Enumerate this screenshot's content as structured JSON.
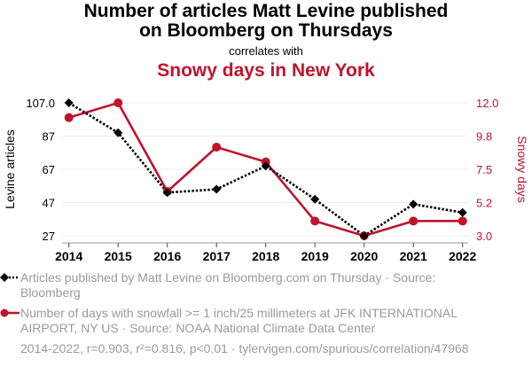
{
  "header": {
    "title_line1": "Number of articles Matt Levine published",
    "title_line2": "on Bloomberg on Thursdays",
    "subtitle": "correlates with",
    "title2": "Snowy days in New York"
  },
  "colors": {
    "series1": "#000000",
    "series2": "#C0132D",
    "grid": "#eeeeee",
    "axis": "#999999",
    "legend_text": "#9a9a9a"
  },
  "legend": [
    {
      "label": "Articles published by Matt Levine on Bloomberg.com on Thursday · Source: Bloomberg"
    },
    {
      "label": "Number of days with snowfall >= 1 inch/25 millimeters at JFK INTERNATIONAL AIRPORT, NY US · Source: NOAA National Climate Data Center"
    }
  ],
  "footer": "2014-2022, r=0.903, r²=0.816, p<0.01 · tylervigen.com/spurious/correlation/47968",
  "chart_data": {
    "type": "line",
    "title": "Number of articles Matt Levine published on Bloomberg on Thursdays correlates with Snowy days in New York",
    "x": [
      2014,
      2015,
      2016,
      2017,
      2018,
      2019,
      2020,
      2021,
      2022
    ],
    "xtick_labels": [
      "2014",
      "2015",
      "2016",
      "2017",
      "2018",
      "2019",
      "2020",
      "2021",
      "2022"
    ],
    "series": [
      {
        "name": "Articles published by Matt Levine on Bloomberg.com on Thursday",
        "axis": "left",
        "style": "dotted",
        "marker": "diamond",
        "values": [
          107,
          89,
          53,
          55,
          69,
          49,
          27,
          46,
          41
        ]
      },
      {
        "name": "Number of days with snowfall >= 1 inch/25 millimeters at JFK INTERNATIONAL AIRPORT, NY US",
        "axis": "right",
        "style": "solid",
        "marker": "circle",
        "values": [
          11,
          12,
          6,
          9,
          8,
          4,
          3,
          4,
          4
        ]
      }
    ],
    "ylabel_left": "Levine articles",
    "ylabel_right": "Snowy days",
    "ylim_left": [
      27,
      107
    ],
    "ylim_right": [
      3,
      12
    ],
    "yticks_left": [
      "107.0",
      "87",
      "67",
      "47",
      "27"
    ],
    "yticks_left_values": [
      107,
      87,
      67,
      47,
      27
    ],
    "yticks_right": [
      "12.0",
      "9.8",
      "7.5",
      "5.2",
      "3.0"
    ],
    "yticks_right_values": [
      12,
      9.75,
      7.5,
      5.25,
      3
    ],
    "grid": true,
    "legend_position": "bottom"
  }
}
